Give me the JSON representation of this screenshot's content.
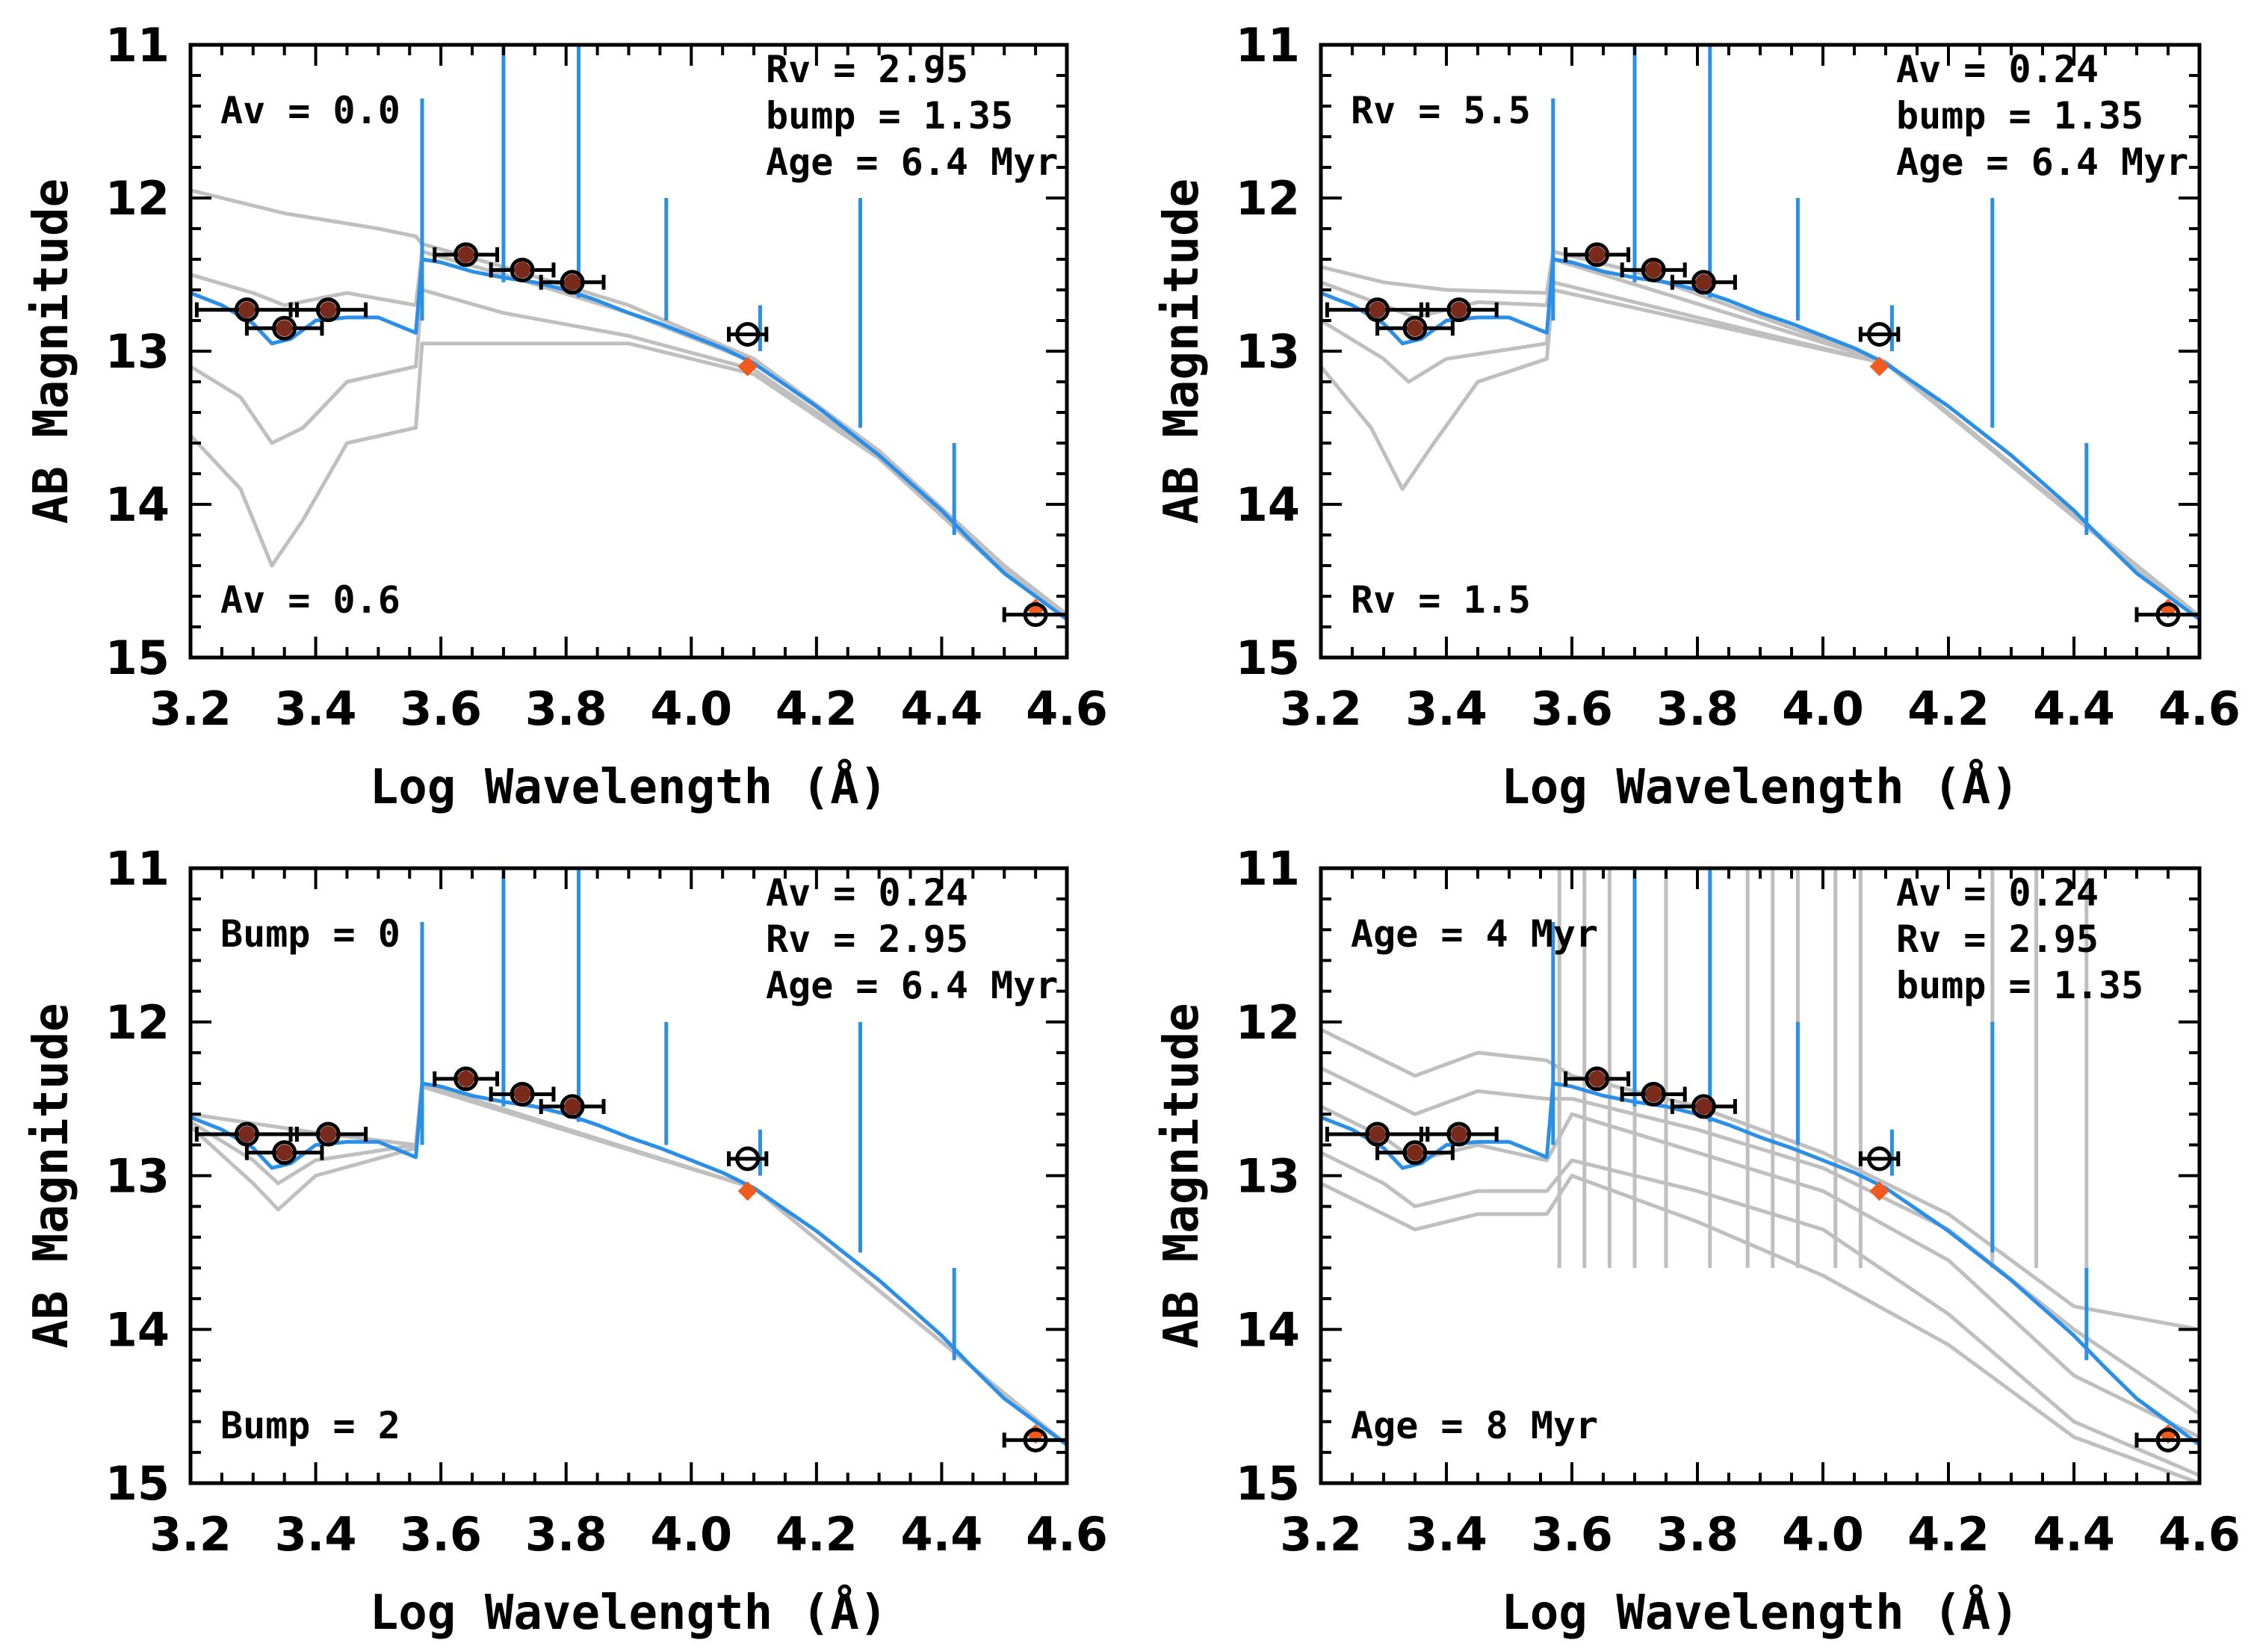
{
  "figure": {
    "colors": {
      "model_blue": "#2b8fe8",
      "grey_models": "#bfbfbf",
      "model_photometry": "#f25a1e"
    }
  },
  "chart_data": [
    {
      "type": "line",
      "panel": "top-left",
      "xlabel": "Log Wavelength (Å)",
      "ylabel": "AB Magnitude",
      "xlim": [
        3.2,
        4.6
      ],
      "ylim": [
        15,
        11
      ],
      "xticks": [
        "3.2",
        "3.4",
        "3.6",
        "3.8",
        "4.0",
        "4.2",
        "4.4",
        "4.6"
      ],
      "yticks": [
        "11",
        "12",
        "13",
        "14",
        "15"
      ],
      "annotations": {
        "top_left": "Av = 0.0",
        "bottom_left": "Av = 0.6",
        "top_right": [
          "Rv = 2.95",
          "bump = 1.35",
          "Age = 6.4 Myr"
        ]
      },
      "observed": [
        {
          "x": 3.29,
          "y": 12.73,
          "xerr": 0.08,
          "filled": true
        },
        {
          "x": 3.35,
          "y": 12.85,
          "xerr": 0.06,
          "filled": true
        },
        {
          "x": 3.42,
          "y": 12.73,
          "xerr": 0.06,
          "filled": true
        },
        {
          "x": 3.64,
          "y": 12.37,
          "xerr": 0.05,
          "filled": true
        },
        {
          "x": 3.73,
          "y": 12.47,
          "xerr": 0.05,
          "filled": true
        },
        {
          "x": 3.81,
          "y": 12.55,
          "xerr": 0.05,
          "filled": true
        },
        {
          "x": 4.09,
          "y": 12.89,
          "xerr": 0.03,
          "filled": false
        },
        {
          "x": 4.55,
          "y": 14.72,
          "xerr": 0.05,
          "filled": false
        }
      ],
      "model_points": [
        {
          "x": 3.64,
          "y": 12.37
        },
        {
          "x": 3.73,
          "y": 12.46
        },
        {
          "x": 4.09,
          "y": 13.1
        },
        {
          "x": 4.55,
          "y": 14.68
        }
      ],
      "blue_lines": [
        {
          "x": 3.82,
          "y1": 12.65,
          "y2": 10.8
        },
        {
          "x": 3.7,
          "y1": 12.55,
          "y2": 10.8
        },
        {
          "x": 3.96,
          "y1": 12.8,
          "y2": 12.0
        },
        {
          "x": 4.27,
          "y1": 13.5,
          "y2": 12.0
        },
        {
          "x": 4.42,
          "y1": 14.2,
          "y2": 13.6
        },
        {
          "x": 4.11,
          "y1": 13.0,
          "y2": 12.7
        },
        {
          "x": 3.57,
          "y1": 12.8,
          "y2": 11.35
        }
      ]
    },
    {
      "type": "line",
      "panel": "top-right",
      "xlabel": "Log Wavelength (Å)",
      "ylabel": "AB Magnitude",
      "xlim": [
        3.2,
        4.6
      ],
      "ylim": [
        15,
        11
      ],
      "xticks": [
        "3.2",
        "3.4",
        "3.6",
        "3.8",
        "4.0",
        "4.2",
        "4.4",
        "4.6"
      ],
      "yticks": [
        "11",
        "12",
        "13",
        "14",
        "15"
      ],
      "annotations": {
        "top_left": "Rv = 5.5",
        "bottom_left": "Rv = 1.5",
        "top_right": [
          "Av = 0.24",
          "bump = 1.35",
          "Age = 6.4 Myr"
        ]
      }
    },
    {
      "type": "line",
      "panel": "bottom-left",
      "xlabel": "Log Wavelength (Å)",
      "ylabel": "AB Magnitude",
      "xlim": [
        3.2,
        4.6
      ],
      "ylim": [
        15,
        11
      ],
      "xticks": [
        "3.2",
        "3.4",
        "3.6",
        "3.8",
        "4.0",
        "4.2",
        "4.4",
        "4.6"
      ],
      "yticks": [
        "11",
        "12",
        "13",
        "14",
        "15"
      ],
      "annotations": {
        "top_left": "Bump = 0",
        "bottom_left": "Bump = 2",
        "top_right": [
          "Av = 0.24",
          "Rv = 2.95",
          "Age = 6.4 Myr"
        ]
      }
    },
    {
      "type": "line",
      "panel": "bottom-right",
      "xlabel": "Log Wavelength (Å)",
      "ylabel": "AB Magnitude",
      "xlim": [
        3.2,
        4.6
      ],
      "ylim": [
        15,
        11
      ],
      "xticks": [
        "3.2",
        "3.4",
        "3.6",
        "3.8",
        "4.0",
        "4.2",
        "4.4",
        "4.6"
      ],
      "yticks": [
        "11",
        "12",
        "13",
        "14",
        "15"
      ],
      "annotations": {
        "top_left": "Age = 4 Myr",
        "bottom_left": "Age = 8 Myr",
        "top_right": [
          "Av = 0.24",
          "Rv = 2.95",
          "bump = 1.35"
        ]
      }
    }
  ],
  "model_curves": {
    "blue": [
      [
        3.2,
        12.62
      ],
      [
        3.25,
        12.7
      ],
      [
        3.3,
        12.82
      ],
      [
        3.33,
        12.95
      ],
      [
        3.36,
        12.92
      ],
      [
        3.4,
        12.8
      ],
      [
        3.45,
        12.78
      ],
      [
        3.5,
        12.78
      ],
      [
        3.56,
        12.88
      ],
      [
        3.57,
        12.4
      ],
      [
        3.6,
        12.42
      ],
      [
        3.65,
        12.48
      ],
      [
        3.7,
        12.52
      ],
      [
        3.75,
        12.55
      ],
      [
        3.8,
        12.6
      ],
      [
        3.85,
        12.67
      ],
      [
        3.9,
        12.75
      ],
      [
        3.95,
        12.82
      ],
      [
        4.0,
        12.9
      ],
      [
        4.05,
        12.98
      ],
      [
        4.1,
        13.08
      ],
      [
        4.15,
        13.22
      ],
      [
        4.2,
        13.36
      ],
      [
        4.25,
        13.52
      ],
      [
        4.3,
        13.68
      ],
      [
        4.35,
        13.86
      ],
      [
        4.4,
        14.04
      ],
      [
        4.45,
        14.25
      ],
      [
        4.5,
        14.45
      ],
      [
        4.55,
        14.6
      ],
      [
        4.6,
        14.75
      ]
    ],
    "grey_sets": {
      "av": [
        [
          [
            3.2,
            11.95
          ],
          [
            3.35,
            12.1
          ],
          [
            3.5,
            12.2
          ],
          [
            3.56,
            12.25
          ],
          [
            3.57,
            12.3
          ],
          [
            3.7,
            12.45
          ],
          [
            3.9,
            12.7
          ],
          [
            4.1,
            13.05
          ],
          [
            4.3,
            13.65
          ],
          [
            4.5,
            14.4
          ],
          [
            4.6,
            14.72
          ]
        ],
        [
          [
            3.2,
            12.5
          ],
          [
            3.3,
            12.62
          ],
          [
            3.35,
            12.7
          ],
          [
            3.45,
            12.62
          ],
          [
            3.56,
            12.7
          ],
          [
            3.57,
            12.35
          ],
          [
            3.7,
            12.5
          ],
          [
            3.9,
            12.75
          ],
          [
            4.1,
            13.07
          ],
          [
            4.3,
            13.66
          ],
          [
            4.5,
            14.42
          ],
          [
            4.6,
            14.73
          ]
        ],
        [
          [
            3.2,
            13.1
          ],
          [
            3.28,
            13.3
          ],
          [
            3.33,
            13.6
          ],
          [
            3.38,
            13.5
          ],
          [
            3.45,
            13.2
          ],
          [
            3.56,
            13.1
          ],
          [
            3.57,
            12.6
          ],
          [
            3.7,
            12.75
          ],
          [
            3.9,
            12.9
          ],
          [
            4.1,
            13.12
          ],
          [
            4.3,
            13.68
          ],
          [
            4.5,
            14.43
          ],
          [
            4.6,
            14.74
          ]
        ],
        [
          [
            3.2,
            13.55
          ],
          [
            3.28,
            13.9
          ],
          [
            3.33,
            14.4
          ],
          [
            3.38,
            14.1
          ],
          [
            3.45,
            13.6
          ],
          [
            3.56,
            13.5
          ],
          [
            3.57,
            12.95
          ],
          [
            3.7,
            12.95
          ],
          [
            3.9,
            12.95
          ],
          [
            4.1,
            13.15
          ],
          [
            4.3,
            13.7
          ],
          [
            4.5,
            14.45
          ],
          [
            4.6,
            14.75
          ]
        ]
      ],
      "rv": [
        [
          [
            3.2,
            12.45
          ],
          [
            3.3,
            12.55
          ],
          [
            3.4,
            12.6
          ],
          [
            3.56,
            12.62
          ],
          [
            3.57,
            12.35
          ],
          [
            3.7,
            12.48
          ],
          [
            4.1,
            13.07
          ],
          [
            4.6,
            14.73
          ]
        ],
        [
          [
            3.2,
            12.55
          ],
          [
            3.3,
            12.7
          ],
          [
            3.35,
            12.78
          ],
          [
            3.45,
            12.68
          ],
          [
            3.56,
            12.7
          ],
          [
            3.57,
            12.4
          ],
          [
            4.1,
            13.07
          ],
          [
            4.6,
            14.74
          ]
        ],
        [
          [
            3.2,
            12.8
          ],
          [
            3.3,
            13.05
          ],
          [
            3.34,
            13.2
          ],
          [
            3.4,
            13.05
          ],
          [
            3.56,
            12.95
          ],
          [
            3.57,
            12.55
          ],
          [
            4.1,
            13.08
          ],
          [
            4.6,
            14.74
          ]
        ],
        [
          [
            3.2,
            13.1
          ],
          [
            3.28,
            13.5
          ],
          [
            3.33,
            13.9
          ],
          [
            3.38,
            13.6
          ],
          [
            3.45,
            13.2
          ],
          [
            3.56,
            13.05
          ],
          [
            3.57,
            12.6
          ],
          [
            4.1,
            13.08
          ],
          [
            4.6,
            14.75
          ]
        ]
      ],
      "bump": [
        [
          [
            3.2,
            12.6
          ],
          [
            3.3,
            12.66
          ],
          [
            3.4,
            12.72
          ],
          [
            3.56,
            12.8
          ],
          [
            3.57,
            12.4
          ],
          [
            4.1,
            13.08
          ],
          [
            4.6,
            14.75
          ]
        ],
        [
          [
            3.2,
            12.65
          ],
          [
            3.3,
            12.9
          ],
          [
            3.34,
            13.05
          ],
          [
            3.4,
            12.9
          ],
          [
            3.56,
            12.8
          ],
          [
            3.57,
            12.4
          ],
          [
            4.1,
            13.08
          ],
          [
            4.6,
            14.75
          ]
        ],
        [
          [
            3.2,
            12.68
          ],
          [
            3.3,
            13.05
          ],
          [
            3.34,
            13.22
          ],
          [
            3.4,
            13.0
          ],
          [
            3.56,
            12.82
          ],
          [
            3.57,
            12.42
          ],
          [
            4.1,
            13.08
          ],
          [
            4.6,
            14.75
          ]
        ]
      ],
      "age": [
        [
          [
            3.2,
            12.05
          ],
          [
            3.3,
            12.25
          ],
          [
            3.35,
            12.35
          ],
          [
            3.45,
            12.2
          ],
          [
            3.56,
            12.25
          ],
          [
            3.6,
            12.35
          ],
          [
            3.8,
            12.55
          ],
          [
            4.0,
            12.85
          ],
          [
            4.2,
            13.25
          ],
          [
            4.4,
            13.85
          ],
          [
            4.6,
            14.0
          ]
        ],
        [
          [
            3.2,
            12.3
          ],
          [
            3.3,
            12.5
          ],
          [
            3.35,
            12.6
          ],
          [
            3.45,
            12.45
          ],
          [
            3.56,
            12.5
          ],
          [
            3.6,
            12.5
          ],
          [
            3.8,
            12.7
          ],
          [
            4.0,
            12.95
          ],
          [
            4.2,
            13.35
          ],
          [
            4.4,
            14.0
          ],
          [
            4.6,
            14.55
          ]
        ],
        [
          [
            3.2,
            12.55
          ],
          [
            3.3,
            12.75
          ],
          [
            3.35,
            12.9
          ],
          [
            3.45,
            12.8
          ],
          [
            3.56,
            12.9
          ],
          [
            3.6,
            12.6
          ],
          [
            3.8,
            12.85
          ],
          [
            4.0,
            13.1
          ],
          [
            4.2,
            13.55
          ],
          [
            4.4,
            14.3
          ],
          [
            4.6,
            14.7
          ]
        ],
        [
          [
            3.2,
            12.85
          ],
          [
            3.3,
            13.05
          ],
          [
            3.35,
            13.2
          ],
          [
            3.45,
            13.1
          ],
          [
            3.56,
            13.1
          ],
          [
            3.6,
            12.9
          ],
          [
            3.8,
            13.1
          ],
          [
            4.0,
            13.35
          ],
          [
            4.2,
            13.9
          ],
          [
            4.4,
            14.6
          ],
          [
            4.6,
            14.95
          ]
        ],
        [
          [
            3.2,
            13.05
          ],
          [
            3.3,
            13.25
          ],
          [
            3.35,
            13.35
          ],
          [
            3.45,
            13.25
          ],
          [
            3.56,
            13.25
          ],
          [
            3.6,
            13.0
          ],
          [
            3.8,
            13.3
          ],
          [
            4.0,
            13.65
          ],
          [
            4.2,
            14.1
          ],
          [
            4.4,
            14.7
          ],
          [
            4.6,
            15.0
          ]
        ]
      ]
    }
  }
}
